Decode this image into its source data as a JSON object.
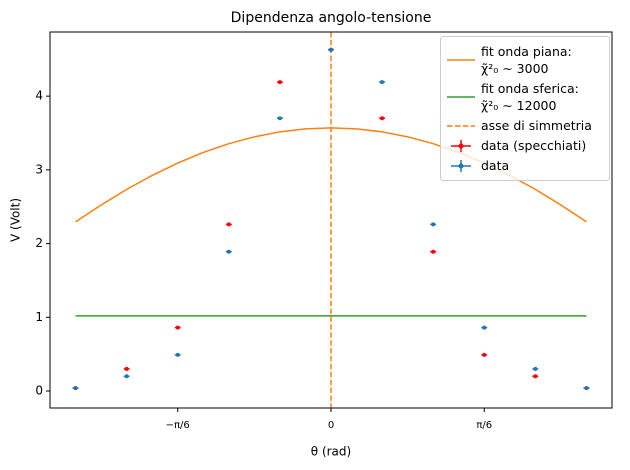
{
  "chart_data": {
    "type": "errorbar",
    "title": "Dipendenza angolo-tensione",
    "x_label": "θ (rad)",
    "y_label": "V (Volt)",
    "xlim": [
      -0.96,
      0.96
    ],
    "ylim": [
      -0.23,
      4.87
    ],
    "xticks": [
      {
        "value": -0.5236,
        "label": "−π/6"
      },
      0,
      {
        "value": 0.5236,
        "label": "π/6"
      }
    ],
    "yticks": [
      0,
      1,
      2,
      3,
      4
    ],
    "legend": "upper right",
    "series": [
      {
        "name": "fit onda piana:\nχ̃²₀ ∼ 3000",
        "style": "line",
        "color": "#ff7f0e",
        "x": [
          -0.8727,
          -0.7854,
          -0.6981,
          -0.6109,
          -0.5236,
          -0.4363,
          -0.3491,
          -0.2618,
          -0.1745,
          -0.0873,
          0,
          0.0873,
          0.1745,
          0.2618,
          0.3491,
          0.4363,
          0.5236,
          0.6109,
          0.6981,
          0.7854,
          0.8727
        ],
        "values": [
          2.295,
          2.524,
          2.735,
          2.924,
          3.092,
          3.236,
          3.355,
          3.448,
          3.516,
          3.556,
          3.57,
          3.556,
          3.516,
          3.448,
          3.355,
          3.236,
          3.092,
          2.924,
          2.735,
          2.524,
          2.295
        ]
      },
      {
        "name": "fit onda sferica:\nχ̃²₀ ∼ 12000",
        "style": "line",
        "color": "#2ca02c",
        "x": [
          -0.8727,
          0.8727
        ],
        "values": [
          1.02,
          1.02
        ]
      },
      {
        "name": "asse di simmetria",
        "style": "vline",
        "color": "#ff7f0e",
        "x": [
          0
        ]
      },
      {
        "name": "data (specchiati)",
        "style": "errorbar",
        "color": "#ff0000",
        "xerr": 0.01,
        "yerr": 0.02,
        "x": [
          -0.8727,
          -0.6981,
          -0.5236,
          -0.3491,
          -0.1745,
          0,
          0.1745,
          0.3491,
          0.5236,
          0.6981,
          0.8727
        ],
        "values": [
          0.04,
          0.3,
          0.86,
          2.26,
          4.19,
          4.63,
          3.7,
          1.89,
          0.49,
          0.2,
          0.04
        ]
      },
      {
        "name": "data",
        "style": "errorbar",
        "color": "#1f77b4",
        "xerr": 0.01,
        "yerr": 0.02,
        "x": [
          -0.8727,
          -0.6981,
          -0.5236,
          -0.3491,
          -0.1745,
          0,
          0.1745,
          0.3491,
          0.5236,
          0.6981,
          0.8727
        ],
        "values": [
          0.04,
          0.2,
          0.49,
          1.89,
          3.7,
          4.63,
          4.19,
          2.26,
          0.86,
          0.3,
          0.04
        ]
      }
    ]
  }
}
